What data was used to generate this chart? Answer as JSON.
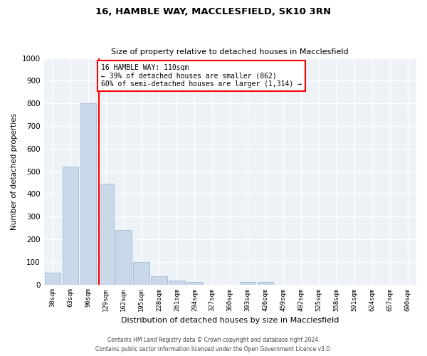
{
  "title_line1": "16, HAMBLE WAY, MACCLESFIELD, SK10 3RN",
  "title_line2": "Size of property relative to detached houses in Macclesfield",
  "xlabel": "Distribution of detached houses by size in Macclesfield",
  "ylabel": "Number of detached properties",
  "bar_labels": [
    "30sqm",
    "63sqm",
    "96sqm",
    "129sqm",
    "162sqm",
    "195sqm",
    "228sqm",
    "261sqm",
    "294sqm",
    "327sqm",
    "360sqm",
    "393sqm",
    "426sqm",
    "459sqm",
    "492sqm",
    "525sqm",
    "558sqm",
    "591sqm",
    "624sqm",
    "657sqm",
    "690sqm"
  ],
  "bar_values": [
    52,
    520,
    800,
    445,
    240,
    98,
    35,
    18,
    10,
    0,
    0,
    10,
    10,
    0,
    0,
    0,
    0,
    0,
    0,
    0,
    0
  ],
  "bar_color": "#c9d9ea",
  "bar_edge_color": "#a8c0d6",
  "property_line_x": 2.62,
  "annotation_text": "16 HAMBLE WAY: 110sqm\n← 39% of detached houses are smaller (862)\n60% of semi-detached houses are larger (1,314) →",
  "annotation_box_color": "white",
  "annotation_box_edge_color": "red",
  "property_line_color": "red",
  "ylim": [
    0,
    1000
  ],
  "yticks": [
    0,
    100,
    200,
    300,
    400,
    500,
    600,
    700,
    800,
    900,
    1000
  ],
  "background_color": "#edf2f7",
  "grid_color": "white",
  "footer_line1": "Contains HM Land Registry data © Crown copyright and database right 2024.",
  "footer_line2": "Contains public sector information licensed under the Open Government Licence v3.0."
}
